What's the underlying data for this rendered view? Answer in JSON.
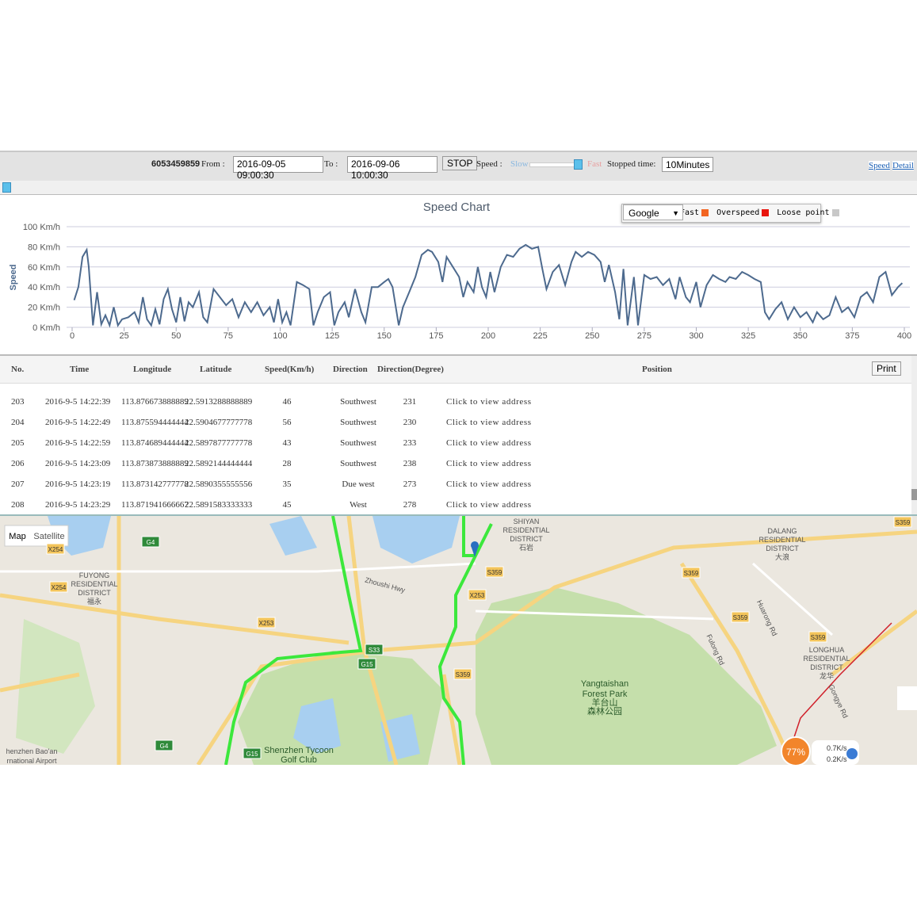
{
  "toolbar": {
    "device_id": "6053459859",
    "from_label": "From :",
    "from_value": "2016-09-05 09:00:30",
    "to_label": "To :",
    "to_value": "2016-09-06 10:00:30",
    "stop_button": "STOP",
    "speed_label": "Speed :",
    "slow_label": "Slow",
    "fast_label": "Fast",
    "stopped_label": "Stopped time:",
    "stopped_value": "10Minutes",
    "tabs": [
      "Speed",
      "Detail"
    ]
  },
  "chart_data": {
    "type": "line",
    "title": "Speed Chart",
    "y_label": "Speed",
    "color": "#4d6a8e",
    "xlim": [
      0,
      400
    ],
    "xticks": [
      0,
      25,
      50,
      75,
      100,
      125,
      150,
      175,
      200,
      225,
      250,
      275,
      300,
      325,
      350,
      375,
      400
    ],
    "ylim": [
      0,
      100
    ],
    "yticks": [
      {
        "value": 0,
        "label": "0 Km/h"
      },
      {
        "value": 20,
        "label": "20 Km/h"
      },
      {
        "value": 40,
        "label": "40 Km/h"
      },
      {
        "value": 60,
        "label": "60 Km/h"
      },
      {
        "value": 80,
        "label": "80 Km/h"
      },
      {
        "value": 100,
        "label": "100 Km/h"
      }
    ],
    "grid": true,
    "x": [
      1,
      3,
      5,
      7,
      8,
      10,
      12,
      14,
      16,
      18,
      20,
      22,
      24,
      27,
      30,
      32,
      34,
      36,
      38,
      40,
      42,
      44,
      46,
      48,
      50,
      52,
      54,
      56,
      58,
      61,
      63,
      65,
      68,
      71,
      74,
      77,
      80,
      83,
      86,
      89,
      92,
      95,
      97,
      99,
      101,
      103,
      105,
      108,
      111,
      114,
      116,
      118,
      121,
      124,
      126,
      128,
      131,
      133,
      136,
      139,
      141,
      144,
      147,
      150,
      152,
      154,
      157,
      159,
      162,
      165,
      168,
      171,
      173,
      176,
      178,
      180,
      183,
      186,
      188,
      190,
      193,
      195,
      197,
      199,
      201,
      203,
      206,
      209,
      212,
      215,
      218,
      221,
      224,
      226,
      228,
      231,
      234,
      237,
      240,
      242,
      245,
      248,
      251,
      254,
      256,
      258,
      261,
      263,
      265,
      267,
      270,
      272,
      275,
      278,
      281,
      284,
      287,
      290,
      292,
      295,
      297,
      300,
      302,
      305,
      308,
      311,
      314,
      316,
      319,
      322,
      325,
      328,
      331,
      333,
      335,
      338,
      341,
      344,
      347,
      350,
      353,
      356,
      358,
      361,
      364,
      367,
      370,
      373,
      376,
      379,
      382,
      385,
      388,
      391,
      394,
      397,
      399
    ],
    "values": [
      27,
      40,
      70,
      77,
      60,
      2,
      35,
      3,
      12,
      2,
      20,
      2,
      8,
      10,
      15,
      5,
      30,
      8,
      2,
      18,
      3,
      28,
      38,
      18,
      5,
      30,
      6,
      25,
      20,
      35,
      10,
      5,
      38,
      30,
      22,
      28,
      10,
      25,
      15,
      25,
      12,
      20,
      5,
      28,
      5,
      15,
      2,
      45,
      42,
      38,
      2,
      15,
      30,
      35,
      2,
      15,
      25,
      10,
      38,
      15,
      5,
      40,
      40,
      45,
      48,
      40,
      2,
      20,
      35,
      50,
      72,
      77,
      75,
      65,
      45,
      70,
      60,
      50,
      30,
      45,
      35,
      60,
      40,
      30,
      55,
      35,
      60,
      72,
      70,
      78,
      82,
      78,
      80,
      58,
      38,
      55,
      62,
      42,
      65,
      75,
      70,
      75,
      72,
      65,
      45,
      62,
      35,
      8,
      58,
      2,
      50,
      2,
      52,
      48,
      50,
      42,
      48,
      28,
      50,
      30,
      25,
      45,
      20,
      42,
      52,
      48,
      45,
      50,
      48,
      55,
      52,
      48,
      45,
      15,
      8,
      18,
      25,
      8,
      20,
      10,
      15,
      5,
      15,
      8,
      12,
      30,
      15,
      20,
      10,
      30,
      35,
      25,
      50,
      55,
      32,
      40,
      44
    ]
  },
  "overlay": {
    "map_select": "Google",
    "legend": [
      {
        "label": "Fast",
        "color": "#f26522"
      },
      {
        "label": "Overspeed",
        "color": "#e8140c"
      },
      {
        "label": "Loose point",
        "color": "#c8c8c8"
      }
    ]
  },
  "table": {
    "headers": [
      "No.",
      "Time",
      "Longitude",
      "Latitude",
      "Speed(Km/h)",
      "Direction",
      "Direction(Degree)",
      "Position"
    ],
    "print_button": "Print",
    "rows": [
      [
        "203",
        "2016-9-5 14:22:39",
        "113.876673888889",
        "22.5913288888889",
        "46",
        "Southwest",
        "231",
        "Click to view address"
      ],
      [
        "204",
        "2016-9-5 14:22:49",
        "113.875594444444",
        "22.5904677777778",
        "56",
        "Southwest",
        "230",
        "Click to view address"
      ],
      [
        "205",
        "2016-9-5 14:22:59",
        "113.874689444444",
        "22.5897877777778",
        "43",
        "Southwest",
        "233",
        "Click to view address"
      ],
      [
        "206",
        "2016-9-5 14:23:09",
        "113.873873888889",
        "22.5892144444444",
        "28",
        "Southwest",
        "238",
        "Click to view address"
      ],
      [
        "207",
        "2016-9-5 14:23:19",
        "113.873142777778",
        "22.5890355555556",
        "35",
        "Due west",
        "273",
        "Click to view address"
      ],
      [
        "208",
        "2016-9-5 14:23:29",
        "113.871941666667",
        "22.5891583333333",
        "45",
        "West",
        "278",
        "Click to view address"
      ]
    ]
  },
  "map": {
    "tabs": [
      "Map",
      "Satellite"
    ],
    "labels": [
      "SHIYAN",
      "RESIDENTIAL",
      "DISTRICT",
      "石岩",
      "DALANG",
      "RESIDENTIAL",
      "DISTRICT",
      "大浪",
      "FUYONG",
      "RESIDENTIAL",
      "DISTRICT",
      "福永",
      "LONGHUA",
      "RESIDENTIAL",
      "DISTRICT",
      "龙华",
      "Yangtaishan",
      "Forest Park",
      "羊台山",
      "森林公园",
      "Shenzhen Tycoon",
      "Golf Club",
      "henzhen Bao'an",
      "rnational Airport",
      "Zhoushi Hwy",
      "Fulong Rd",
      "Huarong Rd",
      "Gongye Rd"
    ],
    "shields": [
      "G4",
      "X254",
      "X254",
      "X253",
      "X253",
      "S33",
      "G15",
      "G15",
      "G4",
      "S359",
      "S359",
      "S359",
      "S359",
      "S359",
      "S359"
    ],
    "status": {
      "percent": "77%",
      "up": "0.7K/s",
      "down": "0.2K/s"
    }
  }
}
